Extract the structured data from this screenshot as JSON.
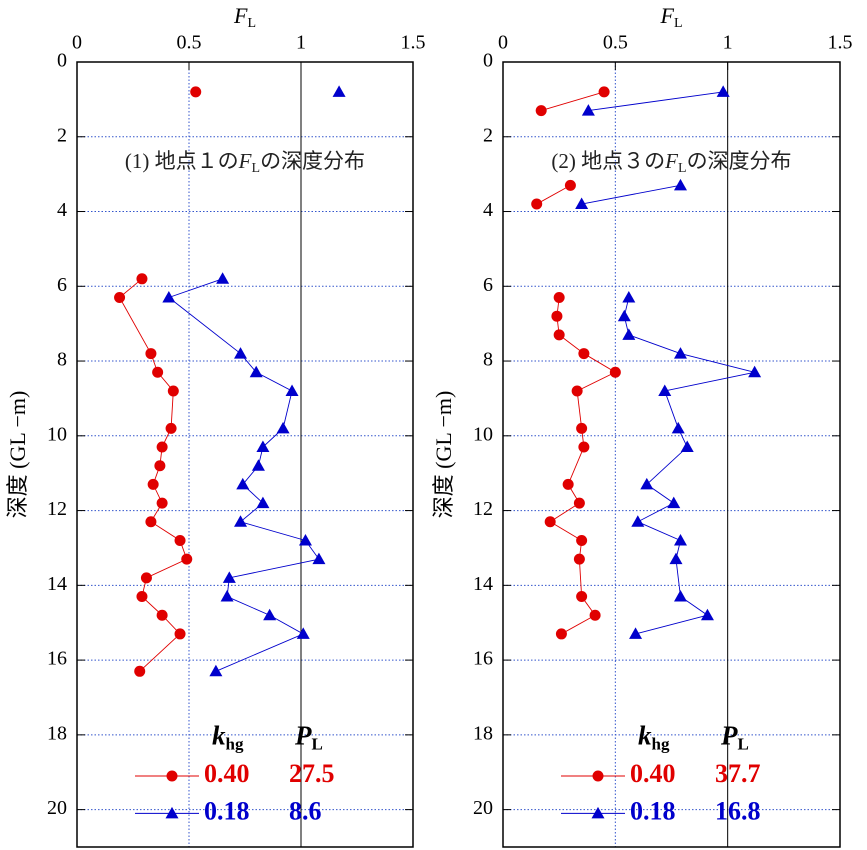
{
  "chart_data": [
    {
      "type": "line",
      "xlabel": {
        "text": "F",
        "sub": "L"
      },
      "ylabel": "深度 (GL −m)",
      "annotation": {
        "before": "(1) 地点１の",
        "var": "F",
        "sub": "L",
        "after": "の深度分布"
      },
      "xlim": [
        0,
        1.5
      ],
      "xticks": [
        0,
        0.5,
        1,
        1.5
      ],
      "ylim": [
        0,
        21
      ],
      "yticks": [
        0,
        2,
        4,
        6,
        8,
        10,
        12,
        14,
        16,
        18,
        20
      ],
      "y_inverted": true,
      "grid": true,
      "ref_x": 1,
      "legend_headers": [
        {
          "text": "k",
          "sub": "hg"
        },
        {
          "text": "P",
          "sub": "L"
        }
      ],
      "series": [
        {
          "name": "0.40",
          "pl": "27.5",
          "color": "#e00000",
          "marker": "circle",
          "x": [
            0.53,
            null,
            0.29,
            0.19,
            0.33,
            0.36,
            0.43,
            0.42,
            0.38,
            0.37,
            0.34,
            0.38,
            0.33,
            0.46,
            0.49,
            0.31,
            0.29,
            0.38,
            0.46,
            0.28
          ],
          "y": [
            0.8,
            null,
            5.8,
            6.3,
            7.8,
            8.3,
            8.8,
            9.8,
            10.3,
            10.8,
            11.3,
            11.8,
            12.3,
            12.8,
            13.3,
            13.8,
            14.3,
            14.8,
            15.3,
            16.3
          ]
        },
        {
          "name": "0.18",
          "pl": "8.6",
          "color": "#0000cc",
          "marker": "triangle",
          "x": [
            1.17,
            null,
            0.65,
            0.41,
            0.73,
            0.8,
            0.96,
            0.92,
            0.83,
            0.81,
            0.74,
            0.83,
            0.73,
            1.02,
            1.08,
            0.68,
            0.67,
            0.86,
            1.01,
            0.62
          ],
          "y": [
            0.8,
            null,
            5.8,
            6.3,
            7.8,
            8.3,
            8.8,
            9.8,
            10.3,
            10.8,
            11.3,
            11.8,
            12.3,
            12.8,
            13.3,
            13.8,
            14.3,
            14.8,
            15.3,
            16.3
          ]
        }
      ]
    },
    {
      "type": "line",
      "xlabel": {
        "text": "F",
        "sub": "L"
      },
      "ylabel": "深度 (GL −m)",
      "annotation": {
        "before": "(2) 地点３の",
        "var": "F",
        "sub": "L",
        "after": "の深度分布"
      },
      "xlim": [
        0,
        1.5
      ],
      "xticks": [
        0,
        0.5,
        1,
        1.5
      ],
      "ylim": [
        0,
        21
      ],
      "yticks": [
        0,
        2,
        4,
        6,
        8,
        10,
        12,
        14,
        16,
        18,
        20
      ],
      "y_inverted": true,
      "grid": true,
      "ref_x": 1,
      "legend_headers": [
        {
          "text": "k",
          "sub": "hg"
        },
        {
          "text": "P",
          "sub": "L"
        }
      ],
      "series": [
        {
          "name": "0.40",
          "pl": "37.7",
          "color": "#e00000",
          "marker": "circle",
          "x": [
            0.45,
            0.17,
            null,
            0.3,
            0.15,
            null,
            0.25,
            0.24,
            0.25,
            0.36,
            0.5,
            0.33,
            0.35,
            0.36,
            0.29,
            0.34,
            0.21,
            0.35,
            0.34,
            0.35,
            0.41,
            0.26
          ],
          "y": [
            0.8,
            1.3,
            null,
            3.3,
            3.8,
            null,
            6.3,
            6.8,
            7.3,
            7.8,
            8.3,
            8.8,
            9.8,
            10.3,
            11.3,
            11.8,
            12.3,
            12.8,
            13.3,
            14.3,
            14.8,
            15.3
          ]
        },
        {
          "name": "0.18",
          "pl": "16.8",
          "color": "#0000cc",
          "marker": "triangle",
          "x": [
            0.98,
            0.38,
            null,
            0.79,
            0.35,
            null,
            0.56,
            0.54,
            0.56,
            0.79,
            1.12,
            0.72,
            0.78,
            0.82,
            0.64,
            0.76,
            0.6,
            0.79,
            0.77,
            0.79,
            0.91,
            0.59
          ],
          "y": [
            0.8,
            1.3,
            null,
            3.3,
            3.8,
            null,
            6.3,
            6.8,
            7.3,
            7.8,
            8.3,
            8.8,
            9.8,
            10.3,
            11.3,
            11.8,
            12.3,
            12.8,
            13.3,
            14.3,
            14.8,
            15.3
          ]
        }
      ]
    }
  ]
}
